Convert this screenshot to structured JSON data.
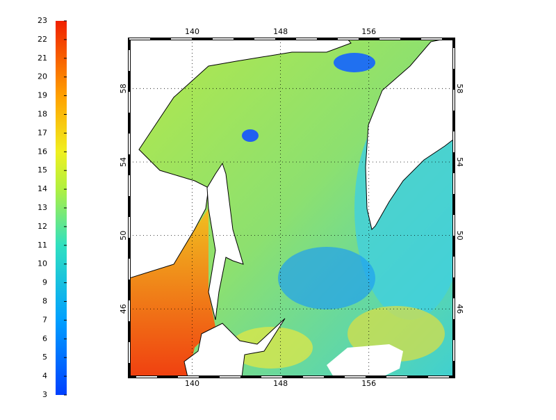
{
  "colorbar": {
    "ticks": [
      3,
      4,
      5,
      6,
      7,
      8,
      9,
      10,
      11,
      12,
      13,
      14,
      15,
      16,
      17,
      18,
      19,
      20,
      21,
      22,
      23
    ],
    "range": [
      3,
      23
    ]
  },
  "map": {
    "lon_lim": [
      134.3,
      163.7
    ],
    "lat_lim": [
      42.3,
      60.7
    ],
    "lon_ticks": [
      140,
      148,
      156
    ],
    "lat_ticks": [
      46,
      50,
      54,
      58
    ]
  }
}
